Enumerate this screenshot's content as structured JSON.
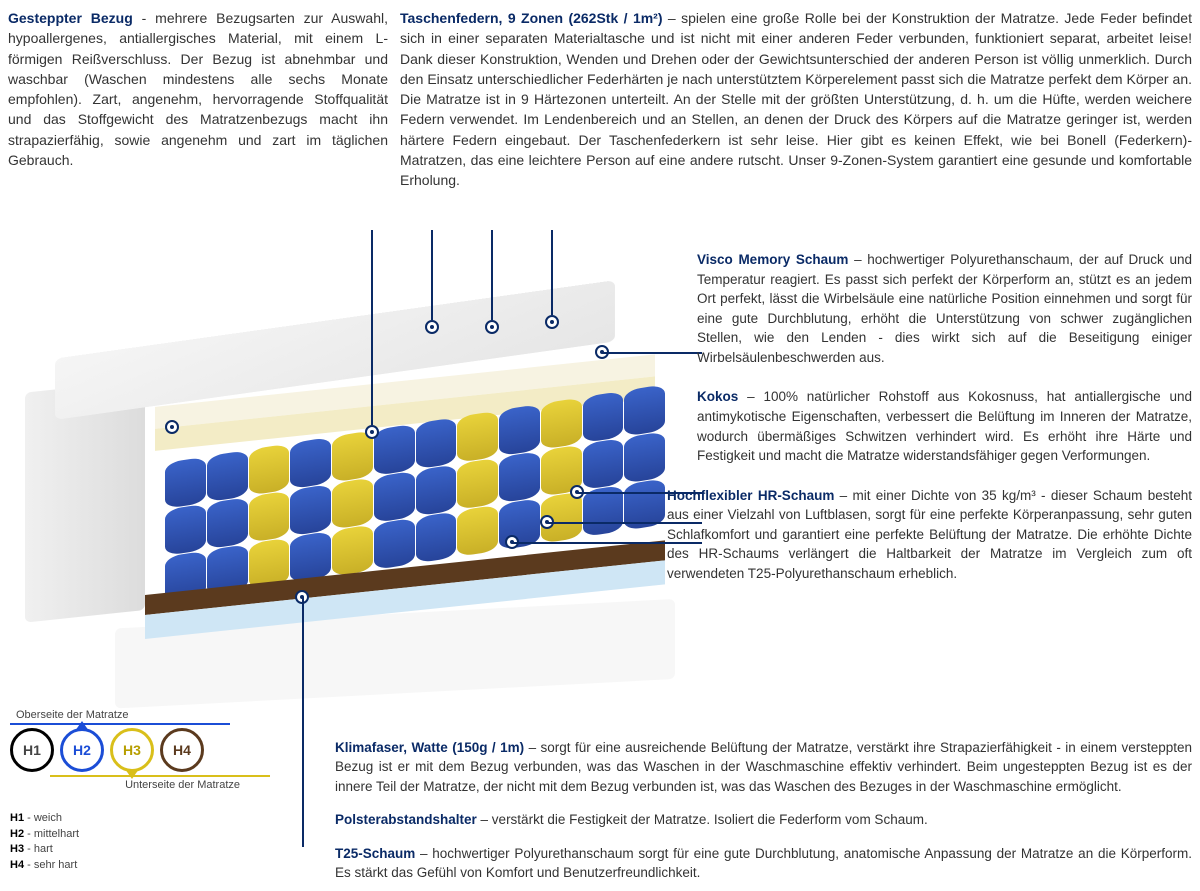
{
  "top": {
    "col1": {
      "title": "Gesteppter Bezug",
      "text": " - mehrere Bezugsarten zur Auswahl, hypoallergenes, antiallergisches Material, mit einem L-förmigen Reißverschluss. Der Bezug ist abnehmbar und waschbar (Waschen mindestens alle sechs Monate empfohlen). Zart, angenehm, hervorragende Stoffqualität und das Stoffgewicht des Matratzenbezugs macht ihn strapazierfähig, sowie angenehm und zart im täglichen Gebrauch."
    },
    "col2": {
      "title": "Taschenfedern, 9 Zonen (262Stk / 1m²)",
      "text": " – spielen eine große Rolle bei der Konstruktion der Matratze. Jede Feder befindet sich in einer separaten Materialtasche und ist nicht mit einer anderen Feder verbunden, funktioniert separat, arbeitet leise! Dank dieser Konstruktion, Wenden und Drehen oder der Gewichtsunterschied der anderen Person ist völlig unmerklich. Durch den Einsatz unterschiedlicher Federhärten je nach unterstütztem Körperelement passt sich die Matratze perfekt dem Körper an. Die Matratze ist in 9 Härtezonen unterteilt. An der Stelle mit der größten Unterstützung, d. h. um die Hüfte, werden weichere Federn verwendet. Im Lendenbereich und an Stellen, an denen der Druck des Körpers auf die Matratze geringer ist, werden härtere Federn eingebaut. Der Taschenfederkern ist sehr leise. Hier gibt es keinen Effekt, wie bei Bonell (Federkern)- Matratzen, das eine leichtere Person auf eine andere rutscht. Unser 9-Zonen-System garantiert eine gesunde und komfortable Erholung."
    }
  },
  "layers": {
    "visco": {
      "title": "Visco Memory Schaum",
      "text": " – hochwertiger Polyurethanschaum, der auf Druck und Temperatur reagiert. Es passt sich perfekt der Körperform an, stützt es an jedem Ort perfekt, lässt die Wirbelsäule eine natürliche Position einnehmen und sorgt für eine gute Durchblutung, erhöht die Unterstützung von schwer zugänglichen Stellen, wie den Lenden - dies wirkt sich auf die Beseitigung einiger Wirbelsäulenbeschwerden aus."
    },
    "kokos": {
      "title": "Kokos",
      "text": " – 100% natürlicher Rohstoff aus Kokosnuss, hat antiallergische und antimykotische Eigenschaften, verbessert die Belüftung im Inneren der Matratze, wodurch übermäßiges Schwitzen verhindert wird. Es erhöht ihre Härte und Festigkeit und macht die Matratze widerstandsfähiger gegen Verformungen."
    },
    "hr": {
      "title": "Hochflexibler HR-Schaum",
      "text": " – mit einer Dichte von 35 kg/m³ - dieser Schaum besteht aus einer Vielzahl von Luftblasen, sorgt für eine perfekte Körperanpassung, sehr guten Schlafkomfort und garantiert eine perfekte Belüftung der Matratze. Die erhöhte Dichte des HR-Schaums verlängert die Haltbarkeit der Matratze im Vergleich zum oft verwendeten T25-Polyurethanschaum erheblich."
    },
    "klima": {
      "title": "Klimafaser, Watte (150g / 1m)",
      "text": " – sorgt für eine ausreichende Belüftung der Matratze, verstärkt ihre Strapazierfähigkeit - in einem versteppten Bezug ist er mit dem Bezug verbunden, was das Waschen in der Waschmaschine effektiv verhindert. Beim ungesteppten Bezug ist es der innere Teil der Matratze, der nicht mit dem Bezug verbunden ist, was das Waschen des Bezuges in der Waschmaschine ermöglicht."
    },
    "polster": {
      "title": "Polsterabstandshalter",
      "text": " – verstärkt die Festigkeit der Matratze. Isoliert die Federform vom Schaum."
    },
    "t25": {
      "title": "T25-Schaum",
      "text": " – hochwertiger Polyurethanschaum sorgt für eine gute Durchblutung, anatomische Anpassung der Matratze an die Körperform. Es stärkt das Gefühl von Komfort und Benutzerfreundlichkeit."
    }
  },
  "legend": {
    "top_label": "Oberseite der Matratze",
    "bot_label": "Unterseite der Matratze",
    "rings": [
      {
        "label": "H1",
        "color": "black"
      },
      {
        "label": "H2",
        "color": "blue",
        "arrow": "up"
      },
      {
        "label": "H3",
        "color": "yel",
        "arrow": "down"
      },
      {
        "label": "H4",
        "color": "brown"
      }
    ],
    "defs": [
      {
        "k": "H1",
        "v": "weich"
      },
      {
        "k": "H2",
        "v": "mittelhart"
      },
      {
        "k": "H3",
        "v": "hart"
      },
      {
        "k": "H4",
        "v": "sehr hart"
      }
    ]
  },
  "illustration": {
    "spring_zone_colors": [
      "blue",
      "blue",
      "yel",
      "blue",
      "yel",
      "blue",
      "blue",
      "yel",
      "blue",
      "yel",
      "blue",
      "blue"
    ],
    "layer_colors": {
      "cream": "#f7f3e2",
      "cream2": "#f3ecc6",
      "hr": "#cfe6f5",
      "kokos": "#5b3a1e",
      "spring_blue": "#3a63c9",
      "spring_yellow": "#e8d23a"
    },
    "callout_color": "#0a2a66"
  }
}
